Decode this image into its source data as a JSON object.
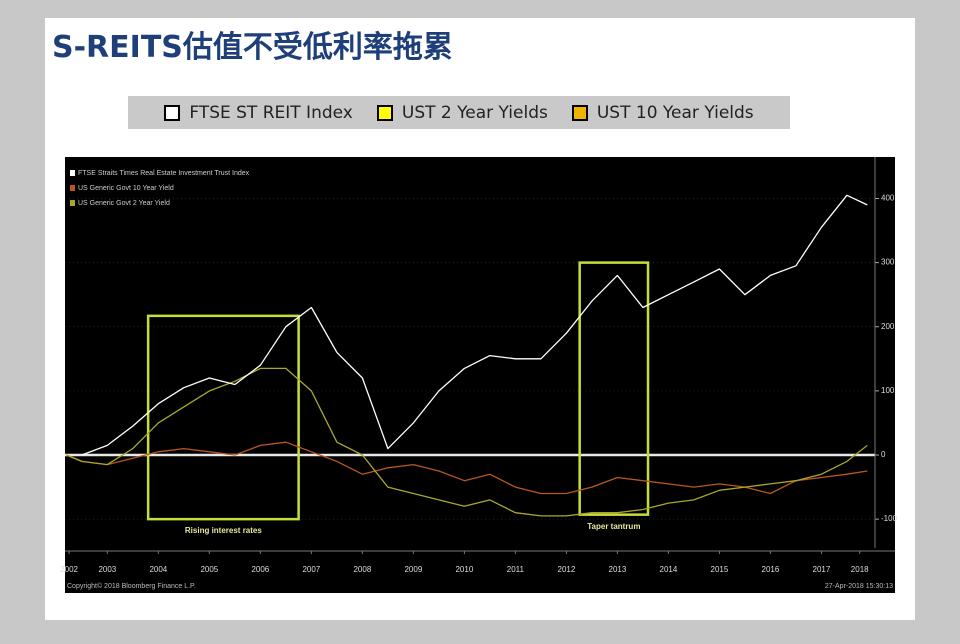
{
  "header": {
    "title": "S-REITS估值不受低利率拖累"
  },
  "chart_data": {
    "type": "line",
    "x": [
      2002.7,
      2003,
      2003.5,
      2004,
      2004.5,
      2005,
      2005.5,
      2006,
      2006.5,
      2007,
      2007.5,
      2008,
      2008.5,
      2009,
      2009.5,
      2010,
      2010.5,
      2011,
      2011.5,
      2012,
      2012.5,
      2013,
      2013.5,
      2014,
      2014.5,
      2015,
      2015.5,
      2016,
      2016.5,
      2017,
      2017.5,
      2018,
      2018.4
    ],
    "series": [
      {
        "name": "FTSE ST REIT Index",
        "color": "#ffffff",
        "legend_swatch": "#ffffff",
        "values": [
          null,
          0,
          15,
          45,
          80,
          105,
          120,
          110,
          140,
          200,
          230,
          160,
          120,
          10,
          50,
          100,
          135,
          155,
          150,
          150,
          190,
          240,
          280,
          230,
          250,
          270,
          290,
          250,
          280,
          295,
          355,
          405,
          390
        ]
      },
      {
        "name": "UST 2 Year Yields",
        "color": "#a8a82a",
        "legend_swatch": "#ffff00",
        "values": [
          0,
          -10,
          -15,
          10,
          50,
          75,
          100,
          115,
          135,
          135,
          100,
          20,
          0,
          -50,
          -60,
          -70,
          -80,
          -70,
          -90,
          -95,
          -95,
          -90,
          -90,
          -85,
          -75,
          -70,
          -55,
          -50,
          -45,
          -40,
          -30,
          -10,
          15
        ]
      },
      {
        "name": "UST 10 Year Yields",
        "color": "#b8581e",
        "legend_swatch": "#f0b400",
        "values": [
          0,
          -10,
          -15,
          -5,
          5,
          10,
          5,
          0,
          15,
          20,
          5,
          -10,
          -30,
          -20,
          -15,
          -25,
          -40,
          -30,
          -50,
          -60,
          -60,
          -50,
          -35,
          -40,
          -45,
          -50,
          -45,
          -50,
          -60,
          -40,
          -35,
          -30,
          -25
        ]
      }
    ],
    "inner_legend": [
      {
        "text": "FTSE Straits Times Real Estate Investment Trust Index",
        "color": "#ffffff"
      },
      {
        "text": "US Generic Govt 10 Year Yield",
        "color": "#b8581e"
      },
      {
        "text": "US Generic Govt 2 Year Yield",
        "color": "#a8a82a"
      }
    ],
    "xlim": [
      2002.67,
      2018.55
    ],
    "ylim": [
      -145,
      460
    ],
    "yticks": [
      -100,
      0,
      100,
      200,
      300,
      400
    ],
    "xticks": [
      {
        "value": 2002.75,
        "label": "2002"
      },
      {
        "value": 2003.5,
        "label": "2003"
      },
      {
        "value": 2004.5,
        "label": "2004"
      },
      {
        "value": 2005.5,
        "label": "2005"
      },
      {
        "value": 2006.5,
        "label": "2006"
      },
      {
        "value": 2007.5,
        "label": "2007"
      },
      {
        "value": 2008.5,
        "label": "2008"
      },
      {
        "value": 2009.5,
        "label": "2009"
      },
      {
        "value": 2010.5,
        "label": "2010"
      },
      {
        "value": 2011.5,
        "label": "2011"
      },
      {
        "value": 2012.5,
        "label": "2012"
      },
      {
        "value": 2013.5,
        "label": "2013"
      },
      {
        "value": 2014.5,
        "label": "2014"
      },
      {
        "value": 2015.5,
        "label": "2015"
      },
      {
        "value": 2016.5,
        "label": "2016"
      },
      {
        "value": 2017.5,
        "label": "2017"
      },
      {
        "value": 2018.25,
        "label": "2018"
      }
    ],
    "highlights": [
      {
        "label": "Rising interest rates",
        "x": [
          2004.3,
          2007.25
        ],
        "y": [
          217,
          -100
        ],
        "color": "#c8dc3c"
      },
      {
        "label": "Taper tantrum",
        "x": [
          2012.76,
          2014.1
        ],
        "y": [
          300,
          -93
        ],
        "color": "#c8dc3c"
      }
    ],
    "copyright": "Copyright© 2018 Bloomberg Finance L.P.",
    "timestamp": "27-Apr-2018 15:30:13"
  }
}
